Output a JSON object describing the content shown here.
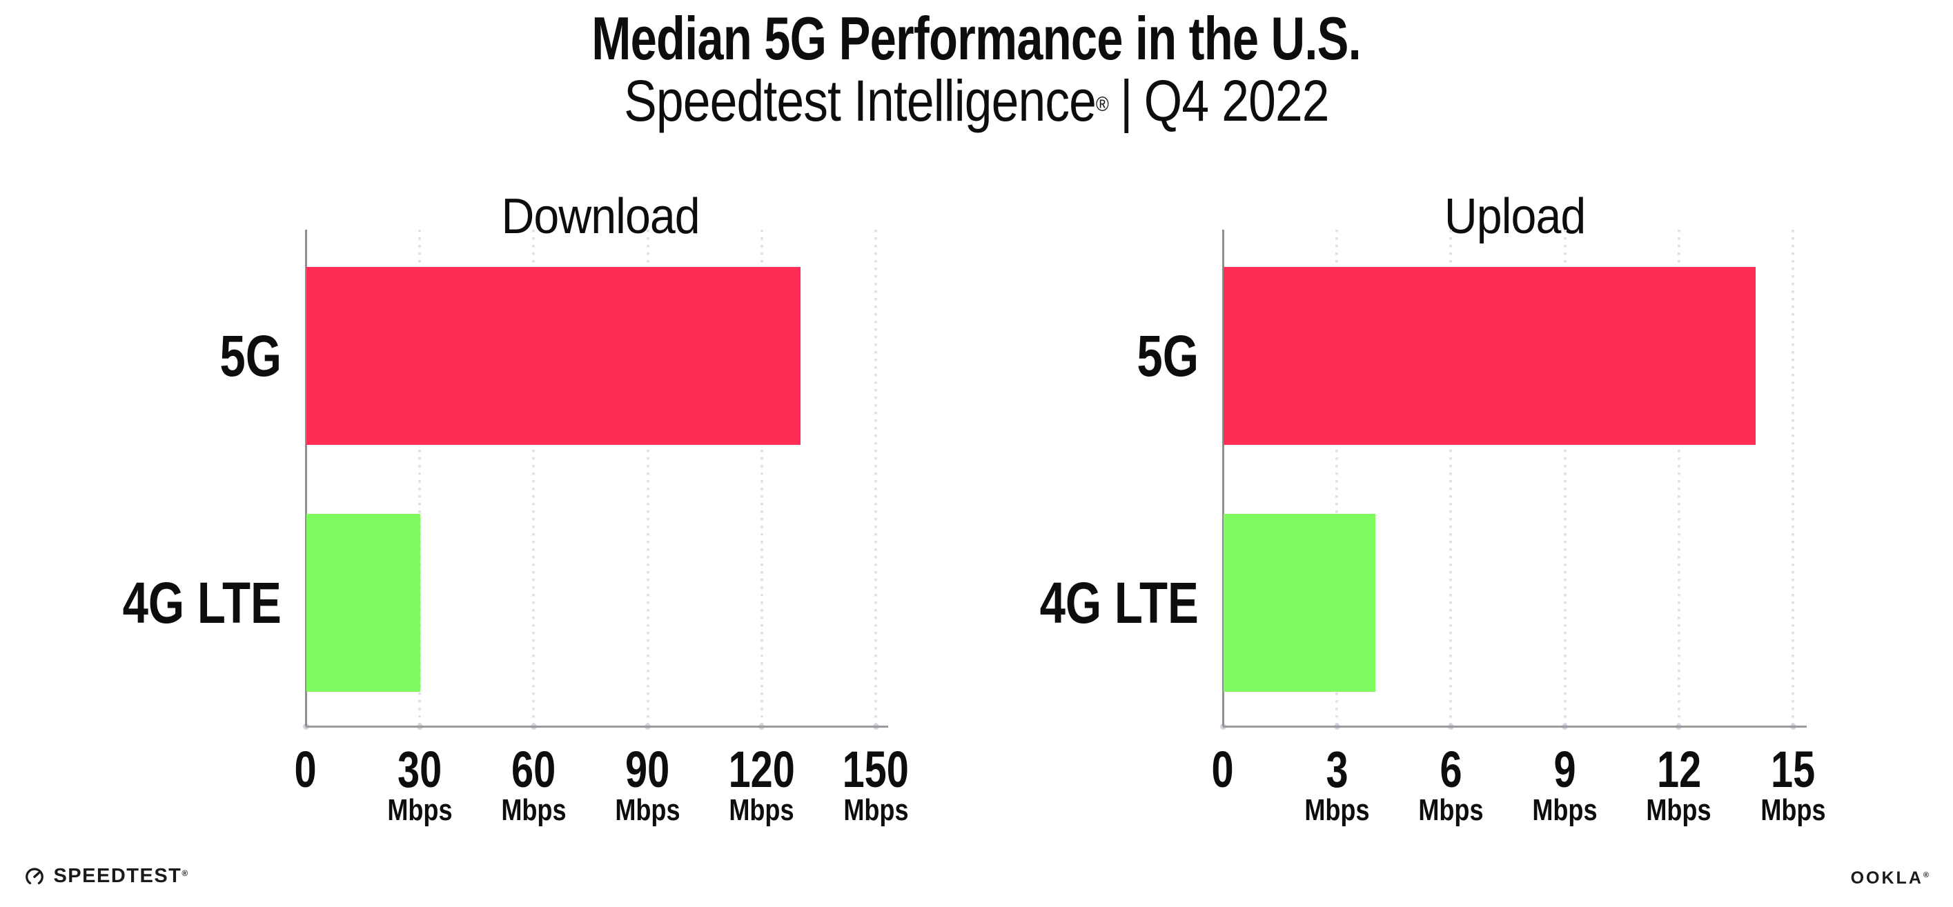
{
  "header": {
    "title": "Median 5G Performance in the U.S.",
    "subtitle_brand": "Speedtest Intelligence",
    "subtitle_reg": "®",
    "subtitle_separator": "|",
    "subtitle_period": "Q4 2022"
  },
  "chart_data": [
    {
      "type": "bar",
      "orientation": "horizontal",
      "title": "Download",
      "categories": [
        "5G",
        "4G LTE"
      ],
      "values": [
        130,
        30
      ],
      "unit": "Mbps",
      "xlabel": "",
      "ylabel": "",
      "xlim": [
        0,
        150
      ],
      "xticks": [
        0,
        30,
        60,
        90,
        120,
        150
      ],
      "tick_unit_label": "Mbps",
      "grid": "dotted vertical gridlines at each tick except 0",
      "legend": "none",
      "bar_colors": [
        "#ff2d55",
        "#7ffb61"
      ]
    },
    {
      "type": "bar",
      "orientation": "horizontal",
      "title": "Upload",
      "categories": [
        "5G",
        "4G LTE"
      ],
      "values": [
        14,
        4
      ],
      "unit": "Mbps",
      "xlabel": "",
      "ylabel": "",
      "xlim": [
        0,
        15
      ],
      "xticks": [
        0,
        3,
        6,
        9,
        12,
        15
      ],
      "tick_unit_label": "Mbps",
      "grid": "dotted vertical gridlines at each tick except 0",
      "legend": "none",
      "bar_colors": [
        "#ff2d55",
        "#7ffb61"
      ]
    }
  ],
  "colors": {
    "bar_5g": "#ff2d55",
    "bar_4g_lte": "#7ffb61",
    "axis": "#8f8f8f",
    "grid_dot": "#e1e1ec",
    "text": "#0d0d0d"
  },
  "footer": {
    "speedtest_label": "SPEEDTEST",
    "speedtest_mark": "®",
    "ookla_label": "OOKLA",
    "ookla_mark": "®"
  }
}
